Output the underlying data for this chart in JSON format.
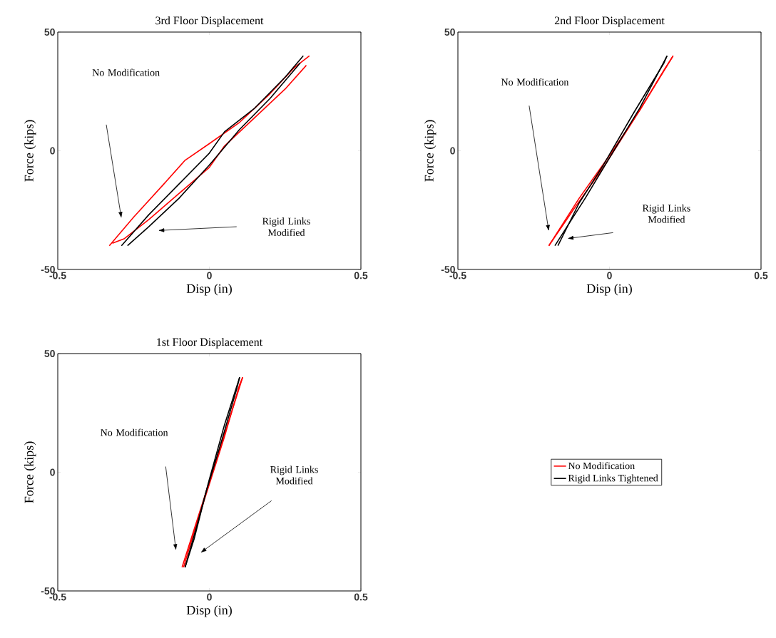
{
  "chart_data": [
    {
      "type": "line",
      "title": "3rd Floor Displacement",
      "xlabel": "Disp (in)",
      "ylabel": "Force (kips)",
      "xlim": [
        -0.5,
        0.5
      ],
      "ylim": [
        -50,
        50
      ],
      "xticks": [
        -0.5,
        0,
        0.5
      ],
      "yticks": [
        -50,
        0,
        50
      ],
      "line_style": "solid",
      "series": [
        {
          "color": "#ff0000",
          "x": [
            -0.33,
            -0.25,
            -0.15,
            -0.08,
            0,
            0.1,
            0.2,
            0.28,
            0.33
          ],
          "values": [
            -40,
            -28,
            -14,
            -4,
            3,
            12,
            24,
            35,
            40
          ]
        },
        {
          "color": "#ff0000",
          "x": [
            0.32,
            0.25,
            0.15,
            0.05,
            0,
            -0.1,
            -0.2,
            -0.28,
            -0.32
          ],
          "values": [
            36,
            26,
            14,
            2,
            -7,
            -18,
            -29,
            -37,
            -39
          ]
        },
        {
          "color": "#000000",
          "x": [
            -0.29,
            -0.2,
            -0.1,
            0,
            0.05,
            0.15,
            0.25,
            0.31
          ],
          "values": [
            -40,
            -27,
            -14,
            -1,
            8,
            18,
            31,
            40
          ]
        },
        {
          "color": "#000000",
          "x": [
            0.3,
            0.2,
            0.1,
            0,
            -0.1,
            -0.2,
            -0.27
          ],
          "values": [
            37,
            22,
            9,
            -6,
            -20,
            -32,
            -40
          ]
        }
      ],
      "annotations": [
        "No Modification",
        "Rigid Links Modified"
      ]
    },
    {
      "type": "line",
      "title": "2nd Floor Displacement",
      "xlabel": "Disp (in)",
      "ylabel": "Force (kips)",
      "xlim": [
        -0.5,
        0.5
      ],
      "ylim": [
        -50,
        50
      ],
      "xticks": [
        -0.5,
        0,
        0.5
      ],
      "yticks": [
        -50,
        0,
        50
      ],
      "line_style": "solid",
      "series": [
        {
          "color": "#ff0000",
          "x": [
            -0.2,
            -0.1,
            0,
            0.1,
            0.21
          ],
          "values": [
            -40,
            -20,
            -2,
            17,
            40
          ]
        },
        {
          "color": "#ff0000",
          "x": [
            0.21,
            0.18,
            0.08,
            -0.02,
            -0.12,
            -0.2
          ],
          "values": [
            40,
            34,
            13,
            -7,
            -25,
            -40
          ]
        },
        {
          "color": "#000000",
          "x": [
            -0.18,
            -0.08,
            0,
            0.1,
            0.19
          ],
          "values": [
            -40,
            -20,
            -3,
            18,
            40
          ]
        },
        {
          "color": "#000000",
          "x": [
            0.19,
            0.18,
            0.08,
            -0.02,
            -0.1,
            -0.17
          ],
          "values": [
            40,
            37,
            16,
            -6,
            -22,
            -40
          ]
        }
      ],
      "annotations": [
        "No Modification",
        "Rigid Links Modified"
      ]
    },
    {
      "type": "line",
      "title": "1st Floor Displacement",
      "xlabel": "Disp (in)",
      "ylabel": "Force (kips)",
      "xlim": [
        -0.5,
        0.5
      ],
      "ylim": [
        -50,
        50
      ],
      "xticks": [
        -0.5,
        0,
        0.5
      ],
      "yticks": [
        -50,
        0,
        50
      ],
      "line_style": "solid",
      "legend": "right",
      "series": [
        {
          "name": "No Modification",
          "color": "#ff0000",
          "x": [
            -0.09,
            -0.04,
            0.01,
            0.06,
            0.11
          ],
          "values": [
            -40,
            -20,
            0,
            20,
            40
          ]
        },
        {
          "color": "#ff0000",
          "x": [
            0.11,
            0.1,
            0.05,
            0,
            -0.05,
            -0.085
          ],
          "values": [
            40,
            37,
            15,
            -5,
            -25,
            -40
          ]
        },
        {
          "name": "Rigid Links Tightened",
          "color": "#000000",
          "x": [
            -0.08,
            -0.04,
            0,
            0.05,
            0.1
          ],
          "values": [
            -40,
            -22,
            -3,
            20,
            40
          ]
        },
        {
          "color": "#000000",
          "x": [
            0.1,
            0.09,
            0.04,
            -0.01,
            -0.05,
            -0.08
          ],
          "values": [
            40,
            35,
            13,
            -8,
            -28,
            -40
          ]
        }
      ],
      "annotations": [
        "No Modification",
        "Rigid Links Modified"
      ]
    }
  ]
}
